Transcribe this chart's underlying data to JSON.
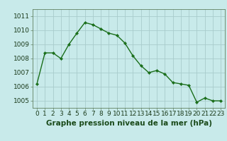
{
  "x": [
    0,
    1,
    2,
    3,
    4,
    5,
    6,
    7,
    8,
    9,
    10,
    11,
    12,
    13,
    14,
    15,
    16,
    17,
    18,
    19,
    20,
    21,
    22,
    23
  ],
  "y": [
    1006.2,
    1008.4,
    1008.4,
    1008.0,
    1009.0,
    1009.8,
    1010.55,
    1010.4,
    1010.1,
    1009.8,
    1009.65,
    1009.1,
    1008.2,
    1007.5,
    1007.0,
    1007.15,
    1006.9,
    1006.3,
    1006.2,
    1006.1,
    1004.9,
    1005.2,
    1005.0,
    1005.0
  ],
  "line_color": "#1a6e1a",
  "marker_color": "#1a6e1a",
  "bg_color": "#c8eaea",
  "grid_color": "#a8cccc",
  "xlabel": "Graphe pression niveau de la mer (hPa)",
  "xlim": [
    -0.5,
    23.5
  ],
  "ylim": [
    1004.5,
    1011.5
  ],
  "yticks": [
    1005,
    1006,
    1007,
    1008,
    1009,
    1010,
    1011
  ],
  "xtick_labels": [
    "0",
    "1",
    "2",
    "3",
    "4",
    "5",
    "6",
    "7",
    "8",
    "9",
    "10",
    "11",
    "12",
    "13",
    "14",
    "15",
    "16",
    "17",
    "18",
    "19",
    "20",
    "21",
    "22",
    "23"
  ],
  "axis_label_fontsize": 7.5,
  "tick_fontsize": 6.5
}
